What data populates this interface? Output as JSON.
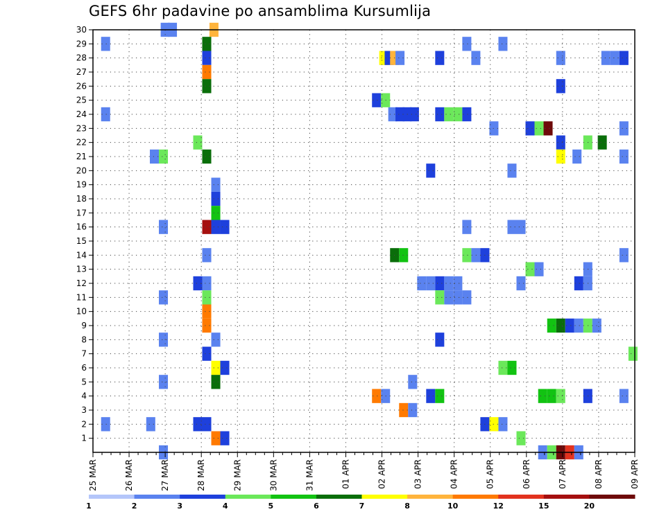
{
  "chart_data": {
    "type": "heatmap",
    "title": "GEFS 6hr padavine po ansamblima Kursumlija",
    "x_labels": [
      "25 MAR",
      "26 MAR",
      "27 MAR",
      "28 MAR",
      "29 MAR",
      "30 MAR",
      "31 MAR",
      "01 APR",
      "02 APR",
      "03 APR",
      "04 APR",
      "05 APR",
      "06 APR",
      "07 APR",
      "08 APR",
      "09 APR"
    ],
    "x_range": [
      0,
      15
    ],
    "y_labels": [
      "1",
      "2",
      "3",
      "4",
      "5",
      "6",
      "7",
      "8",
      "9",
      "10",
      "11",
      "12",
      "13",
      "14",
      "15",
      "16",
      "17",
      "18",
      "19",
      "20",
      "21",
      "22",
      "23",
      "24",
      "25",
      "26",
      "27",
      "28",
      "29",
      "30"
    ],
    "y_range": [
      0,
      30
    ],
    "grid": true,
    "legend": {
      "placement": "bottom",
      "labels": [
        "1",
        "2",
        "3",
        "4",
        "5",
        "6",
        "7",
        "8",
        "10",
        "12",
        "15",
        "20"
      ],
      "colors": [
        "#b4c6fa",
        "#5a82ef",
        "#1e40dc",
        "#6be85a",
        "#12c312",
        "#0a6e0a",
        "#ffff00",
        "#ffb43c",
        "#ff7a00",
        "#e2321e",
        "#a50f0f",
        "#6e0a0a"
      ]
    },
    "cells": [
      [
        2.0,
        30,
        1
      ],
      [
        2.2,
        30,
        1
      ],
      [
        3.35,
        30,
        7
      ],
      [
        0.35,
        29,
        1
      ],
      [
        3.15,
        29,
        5
      ],
      [
        10.35,
        29,
        1
      ],
      [
        11.35,
        29,
        1
      ],
      [
        3.15,
        28,
        2
      ],
      [
        8.05,
        28,
        6
      ],
      [
        8.2,
        28,
        2
      ],
      [
        8.35,
        28,
        7
      ],
      [
        8.5,
        28,
        1
      ],
      [
        9.6,
        28,
        2
      ],
      [
        10.6,
        28,
        1
      ],
      [
        12.95,
        28,
        1
      ],
      [
        14.2,
        28,
        1
      ],
      [
        14.45,
        28,
        1
      ],
      [
        14.7,
        28,
        2
      ],
      [
        3.15,
        27,
        8
      ],
      [
        3.15,
        26,
        5
      ],
      [
        12.95,
        26,
        2
      ],
      [
        7.85,
        25,
        2
      ],
      [
        8.1,
        25,
        3
      ],
      [
        0.35,
        24,
        1
      ],
      [
        8.3,
        24,
        1
      ],
      [
        8.5,
        24,
        2
      ],
      [
        8.7,
        24,
        2
      ],
      [
        8.9,
        24,
        2
      ],
      [
        9.6,
        24,
        2
      ],
      [
        9.85,
        24,
        3
      ],
      [
        10.1,
        24,
        3
      ],
      [
        10.35,
        24,
        2
      ],
      [
        11.1,
        23,
        1
      ],
      [
        12.1,
        23,
        2
      ],
      [
        12.35,
        23,
        3
      ],
      [
        12.6,
        23,
        11
      ],
      [
        14.7,
        23,
        1
      ],
      [
        2.9,
        22,
        3
      ],
      [
        12.95,
        22,
        2
      ],
      [
        13.7,
        22,
        3
      ],
      [
        14.1,
        22,
        5
      ],
      [
        1.7,
        21,
        1
      ],
      [
        1.95,
        21,
        3
      ],
      [
        3.15,
        21,
        5
      ],
      [
        12.95,
        21,
        6
      ],
      [
        13.4,
        21,
        1
      ],
      [
        14.7,
        21,
        1
      ],
      [
        9.35,
        20,
        2
      ],
      [
        11.6,
        20,
        1
      ],
      [
        3.4,
        19,
        1
      ],
      [
        3.4,
        18,
        2
      ],
      [
        3.4,
        17,
        4
      ],
      [
        1.95,
        16,
        1
      ],
      [
        3.15,
        16,
        10
      ],
      [
        3.4,
        16,
        2
      ],
      [
        3.65,
        16,
        2
      ],
      [
        10.35,
        16,
        1
      ],
      [
        11.6,
        16,
        1
      ],
      [
        11.85,
        16,
        1
      ],
      [
        3.15,
        14,
        1
      ],
      [
        8.35,
        14,
        5
      ],
      [
        8.6,
        14,
        4
      ],
      [
        10.35,
        14,
        3
      ],
      [
        10.6,
        14,
        1
      ],
      [
        10.85,
        14,
        2
      ],
      [
        14.7,
        14,
        1
      ],
      [
        12.1,
        13,
        3
      ],
      [
        12.35,
        13,
        1
      ],
      [
        13.7,
        13,
        1
      ],
      [
        2.9,
        12,
        2
      ],
      [
        3.15,
        12,
        1
      ],
      [
        9.1,
        12,
        1
      ],
      [
        9.35,
        12,
        1
      ],
      [
        9.6,
        12,
        2
      ],
      [
        9.85,
        12,
        1
      ],
      [
        10.1,
        12,
        1
      ],
      [
        11.85,
        12,
        1
      ],
      [
        13.45,
        12,
        2
      ],
      [
        13.7,
        12,
        1
      ],
      [
        1.95,
        11,
        1
      ],
      [
        3.15,
        11,
        3
      ],
      [
        9.6,
        11,
        3
      ],
      [
        9.85,
        11,
        1
      ],
      [
        10.1,
        11,
        1
      ],
      [
        10.35,
        11,
        1
      ],
      [
        3.15,
        10,
        8
      ],
      [
        3.15,
        9,
        8
      ],
      [
        12.7,
        9,
        4
      ],
      [
        12.95,
        9,
        5
      ],
      [
        13.2,
        9,
        2
      ],
      [
        13.45,
        9,
        1
      ],
      [
        13.7,
        9,
        3
      ],
      [
        13.95,
        9,
        1
      ],
      [
        1.95,
        8,
        1
      ],
      [
        3.4,
        8,
        1
      ],
      [
        9.6,
        8,
        2
      ],
      [
        3.15,
        7,
        2
      ],
      [
        14.95,
        7,
        3
      ],
      [
        3.4,
        6,
        6
      ],
      [
        3.65,
        6,
        2
      ],
      [
        11.35,
        6,
        3
      ],
      [
        11.6,
        6,
        4
      ],
      [
        1.95,
        5,
        1
      ],
      [
        3.4,
        5,
        5
      ],
      [
        8.85,
        5,
        1
      ],
      [
        7.85,
        4,
        8
      ],
      [
        8.1,
        4,
        1
      ],
      [
        9.35,
        4,
        2
      ],
      [
        9.6,
        4,
        4
      ],
      [
        12.45,
        4,
        4
      ],
      [
        12.7,
        4,
        4
      ],
      [
        12.95,
        4,
        3
      ],
      [
        13.7,
        4,
        2
      ],
      [
        14.7,
        4,
        1
      ],
      [
        8.6,
        3,
        8
      ],
      [
        8.85,
        3,
        1
      ],
      [
        0.35,
        2,
        1
      ],
      [
        1.6,
        2,
        1
      ],
      [
        2.9,
        2,
        2
      ],
      [
        3.15,
        2,
        2
      ],
      [
        10.85,
        2,
        2
      ],
      [
        11.1,
        2,
        6
      ],
      [
        11.35,
        2,
        1
      ],
      [
        3.4,
        1,
        8
      ],
      [
        3.65,
        1,
        2
      ],
      [
        11.85,
        1,
        3
      ],
      [
        1.95,
        0,
        1
      ],
      [
        12.45,
        0,
        1
      ],
      [
        12.7,
        0,
        3
      ],
      [
        12.95,
        0,
        11
      ],
      [
        13.2,
        0,
        9
      ],
      [
        13.45,
        0,
        1
      ]
    ]
  }
}
